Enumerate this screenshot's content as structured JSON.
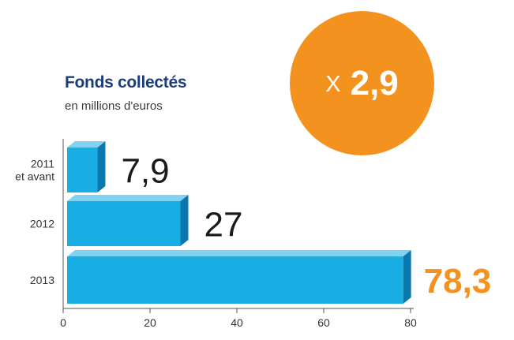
{
  "chart_data": {
    "type": "bar",
    "orientation": "horizontal",
    "title": "Fonds collectés",
    "subtitle": "en millions d'euros",
    "categories": [
      [
        "2011",
        "et avant"
      ],
      [
        "2012"
      ],
      [
        "2013"
      ]
    ],
    "values": [
      7.9,
      27,
      78.3
    ],
    "value_labels": [
      "7,9",
      "27",
      "78,3"
    ],
    "xlim": [
      0,
      80
    ],
    "x_ticks": [
      0,
      20,
      40,
      60,
      80
    ],
    "grid": false,
    "legend": "none"
  },
  "badge": {
    "prefix": "X",
    "value": "2,9"
  },
  "colors": {
    "bar_front": "#19aee3",
    "bar_top": "#7fd2f2",
    "bar_side": "#0b78ad",
    "title": "#1d3c7a",
    "highlight": "#f4921f",
    "value_label": "#1a1a1a",
    "axis": "#555555",
    "tick_label": "#333333"
  }
}
